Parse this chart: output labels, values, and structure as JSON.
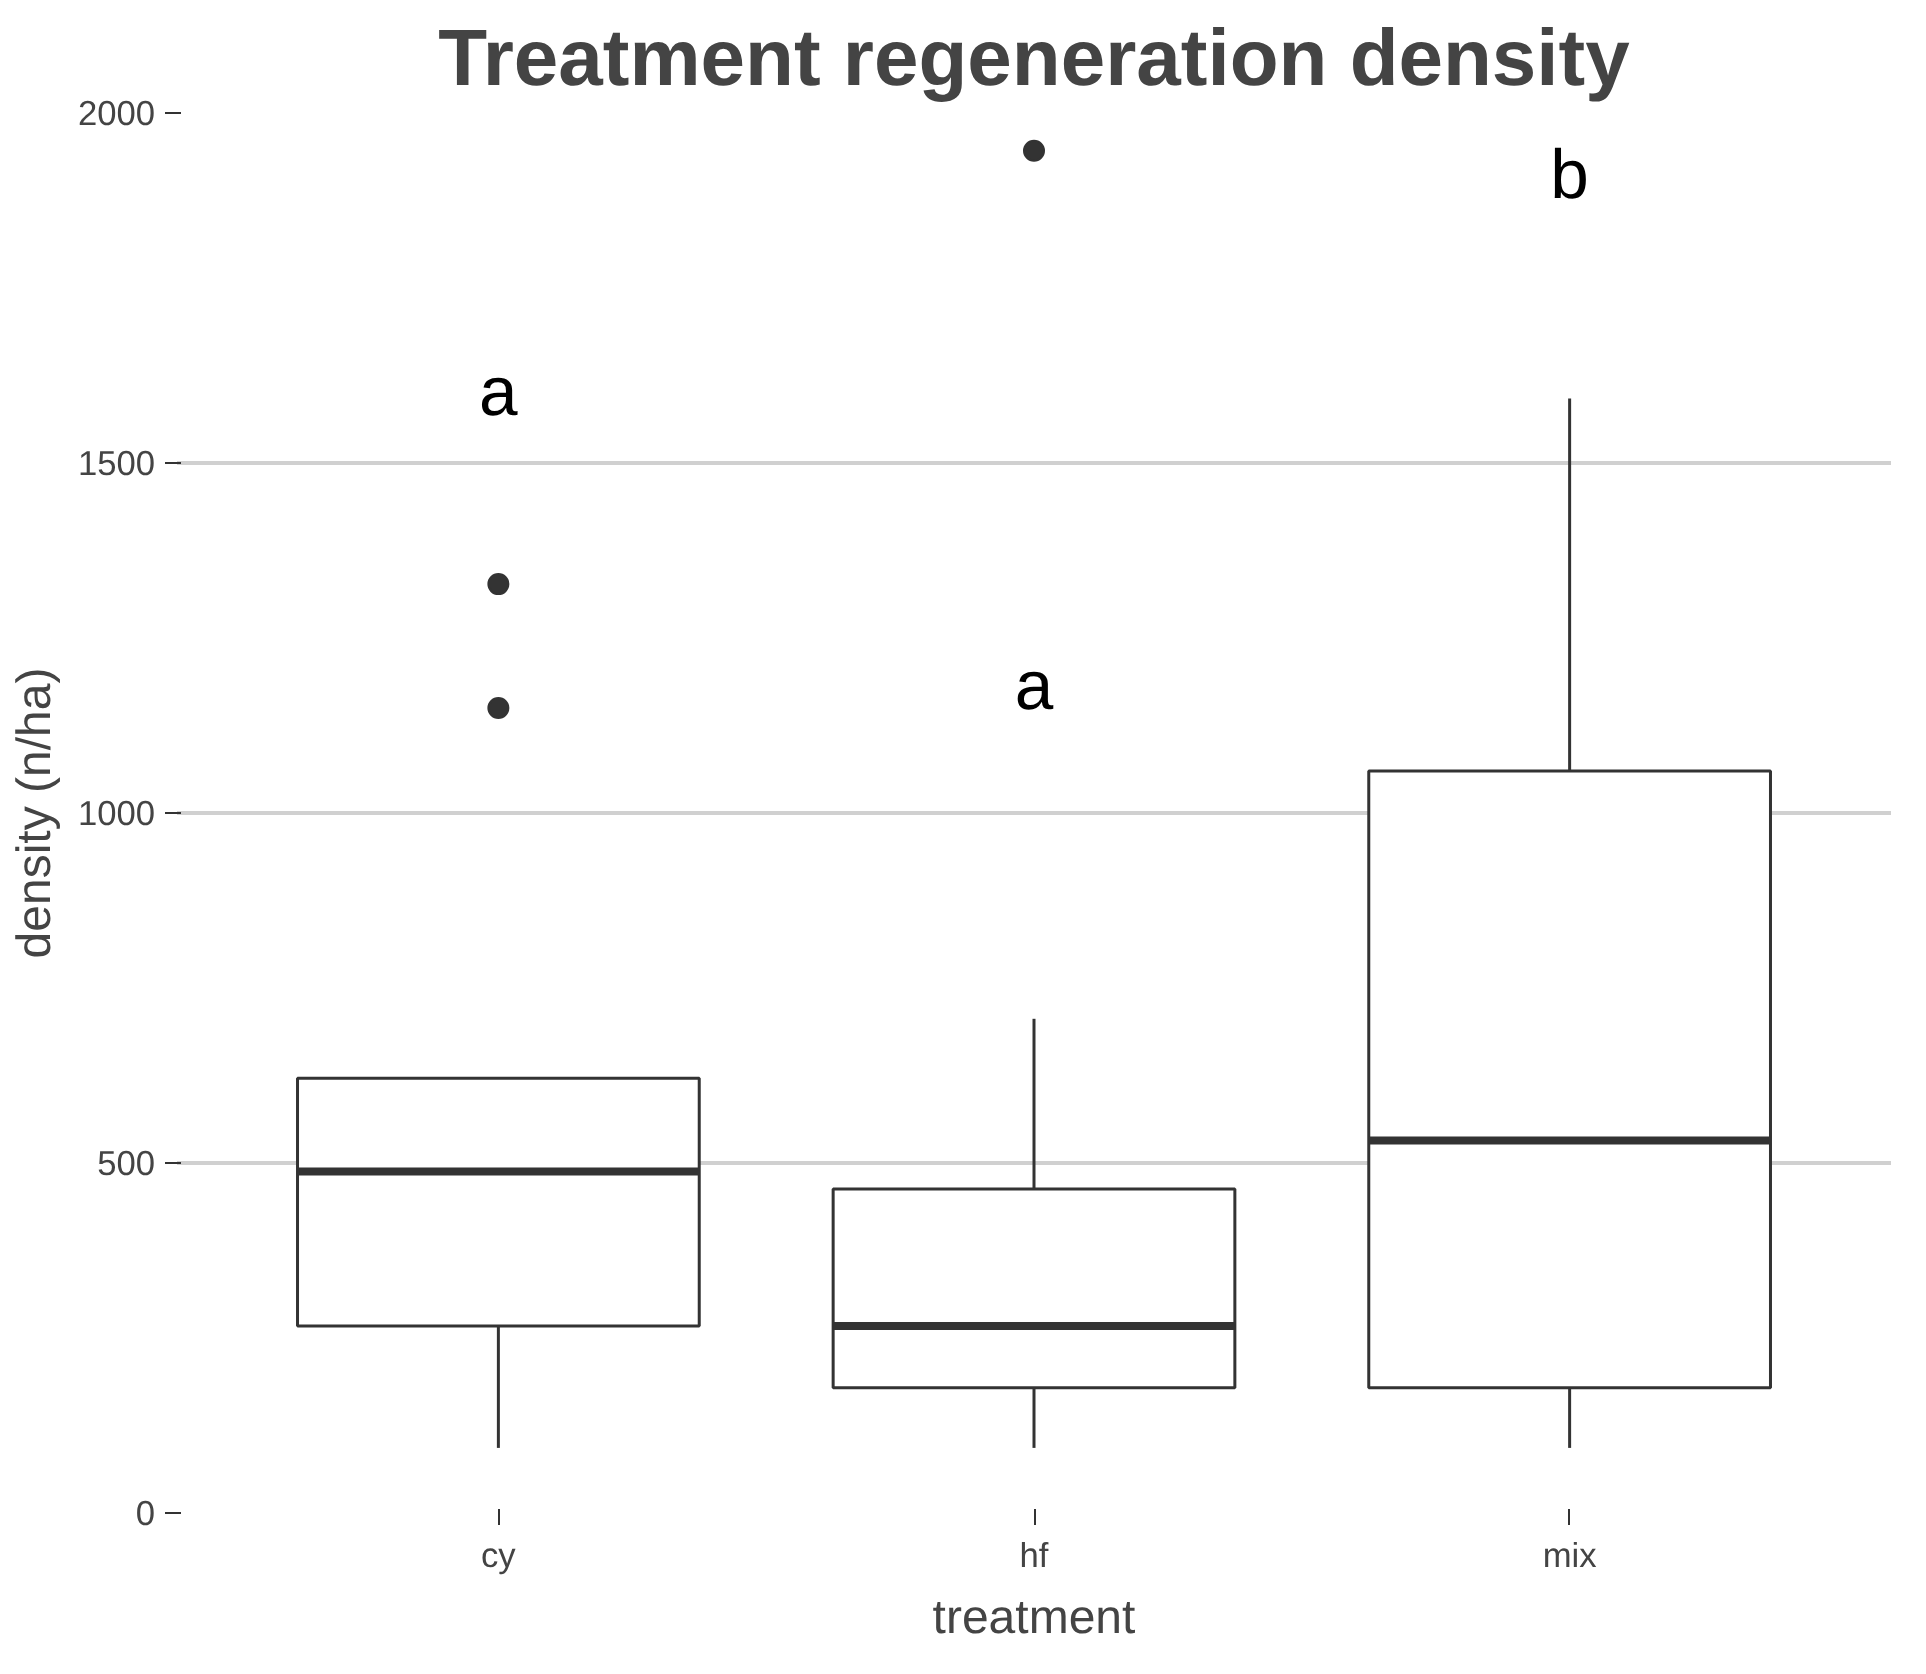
{
  "chart_data": {
    "type": "box",
    "title": "Treatment regeneration density",
    "xlabel": "treatment",
    "ylabel": "density (n/ha)",
    "categories": [
      "cy",
      "hf",
      "mix"
    ],
    "boxes": [
      {
        "low": 93,
        "q1": 267,
        "median": 488,
        "q3": 621,
        "high": 621,
        "outliers": [
          1150,
          1327
        ]
      },
      {
        "low": 93,
        "q1": 179,
        "median": 267,
        "q3": 463,
        "high": 706,
        "outliers": [
          1946
        ]
      },
      {
        "low": 93,
        "q1": 179,
        "median": 532,
        "q3": 1060,
        "high": 1592
      }
    ],
    "ylim": [
      0,
      2000
    ],
    "yticks": [
      0,
      500,
      1000,
      1500,
      2000
    ],
    "grid": "y",
    "annotations": [
      "a",
      "a",
      "b"
    ]
  }
}
